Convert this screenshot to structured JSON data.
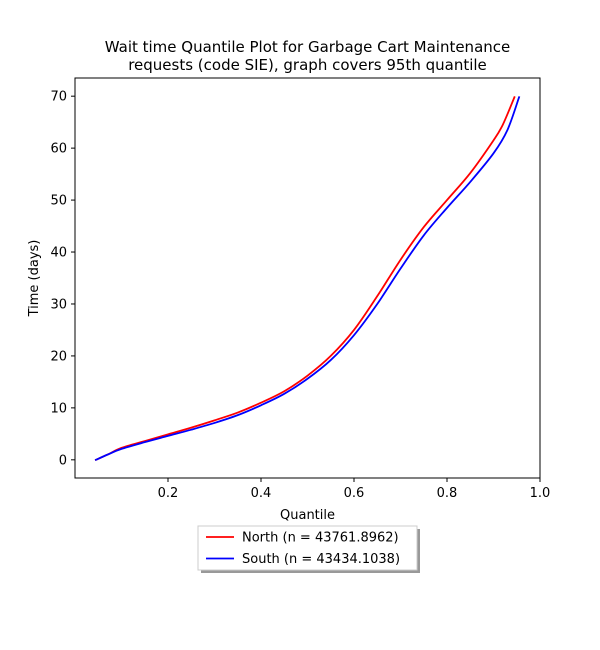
{
  "chart_data": {
    "type": "line",
    "title_lines": [
      "Wait time Quantile Plot for Garbage Cart Maintenance",
      "requests (code SIE), graph covers 95th quantile"
    ],
    "xlabel": "Quantile",
    "ylabel": "Time (days)",
    "xlim": [
      0.0,
      1.0
    ],
    "ylim": [
      -3.5,
      73.5
    ],
    "xticks": [
      0.2,
      0.4,
      0.6,
      0.8,
      1.0
    ],
    "xtick_labels": [
      "0.2",
      "0.4",
      "0.6",
      "0.8",
      "1.0"
    ],
    "yticks": [
      0,
      10,
      20,
      30,
      40,
      50,
      60,
      70
    ],
    "ytick_labels": [
      "0",
      "10",
      "20",
      "30",
      "40",
      "50",
      "60",
      "70"
    ],
    "grid": false,
    "legend_position": "below plot, centered",
    "series": [
      {
        "name": "North (n = 43761.8962)",
        "color": "#ff0000",
        "x": [
          0.045,
          0.07,
          0.1,
          0.15,
          0.2,
          0.25,
          0.3,
          0.35,
          0.4,
          0.45,
          0.5,
          0.55,
          0.6,
          0.65,
          0.7,
          0.75,
          0.8,
          0.85,
          0.9,
          0.92,
          0.945
        ],
        "y": [
          0,
          1.0,
          2.3,
          3.6,
          4.9,
          6.2,
          7.6,
          9.1,
          11.0,
          13.2,
          16.2,
          20.0,
          25.0,
          31.5,
          38.5,
          44.8,
          50.0,
          55.2,
          61.5,
          64.5,
          69.8
        ]
      },
      {
        "name": "South (n = 43434.1038)",
        "color": "#0000ff",
        "x": [
          0.045,
          0.07,
          0.1,
          0.15,
          0.2,
          0.25,
          0.3,
          0.35,
          0.4,
          0.45,
          0.5,
          0.55,
          0.6,
          0.65,
          0.7,
          0.75,
          0.8,
          0.85,
          0.9,
          0.93,
          0.955
        ],
        "y": [
          0,
          1.0,
          2.1,
          3.4,
          4.6,
          5.8,
          7.1,
          8.6,
          10.5,
          12.7,
          15.6,
          19.2,
          24.0,
          30.0,
          36.8,
          43.2,
          48.5,
          53.5,
          59.0,
          63.5,
          69.8
        ]
      }
    ]
  }
}
